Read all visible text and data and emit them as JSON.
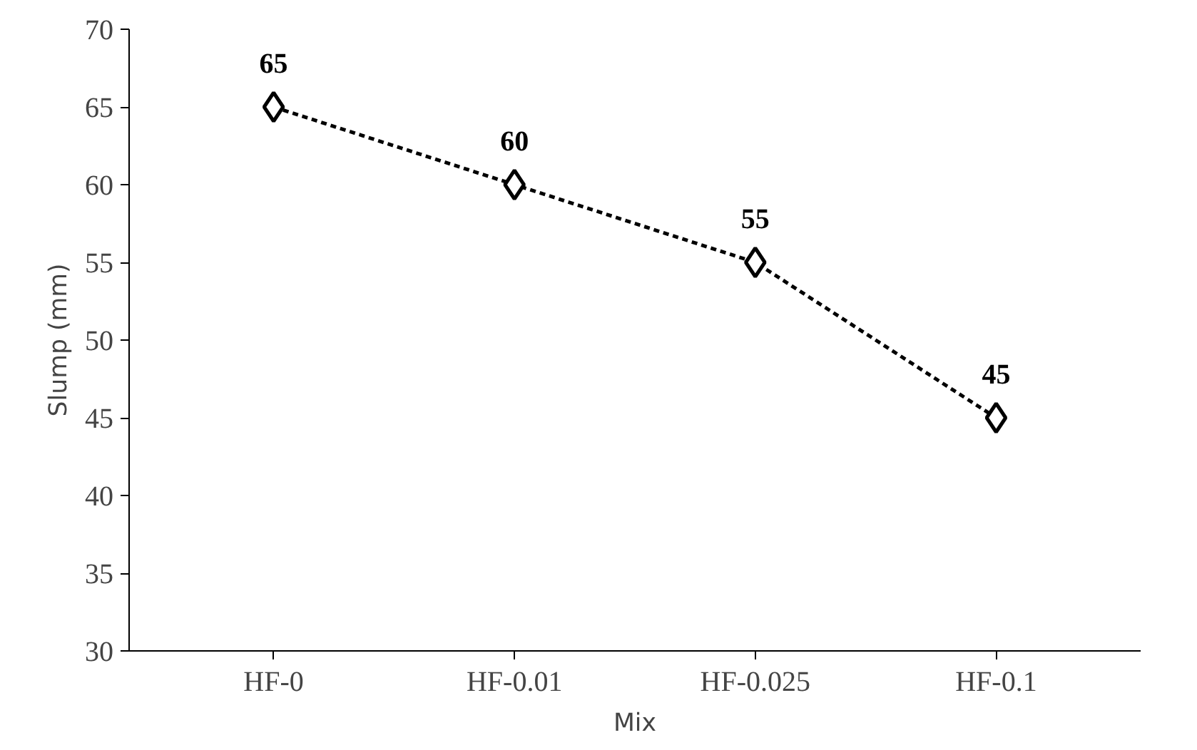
{
  "chart_data": {
    "type": "line",
    "xlabel": "Mix",
    "ylabel": "Slump (mm)",
    "categories": [
      "HF-0",
      "HF-0.01",
      "HF-0.025",
      "HF-0.1"
    ],
    "series": [
      {
        "color": "#000000",
        "values": [
          65,
          60,
          55,
          45
        ]
      }
    ],
    "ylim": [
      30,
      70
    ],
    "yticks": [
      30,
      35,
      40,
      45,
      50,
      55,
      60,
      65,
      70
    ],
    "marker": "diamond",
    "line_style": "dashed",
    "data_labels": true
  }
}
